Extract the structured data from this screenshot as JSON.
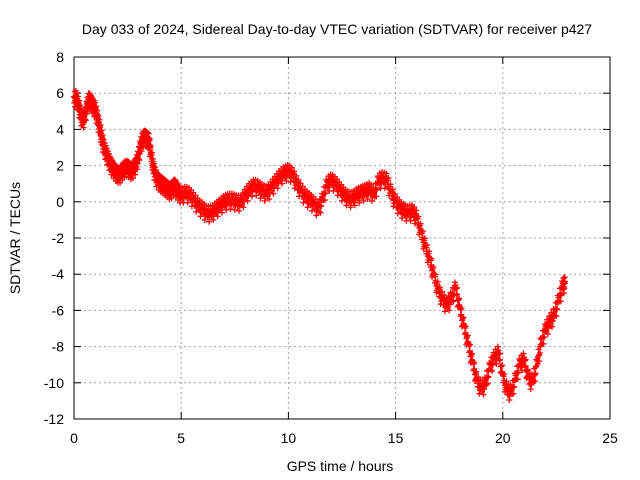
{
  "chart_data": {
    "type": "scatter",
    "title": "Day 033 of 2024, Sidereal Day-to-day VTEC variation (SDTVAR) for receiver p427",
    "xlabel": "GPS time / hours",
    "ylabel": "SDTVAR / TECUs",
    "xlim": [
      0,
      25
    ],
    "ylim": [
      -12,
      8
    ],
    "xticks": [
      0,
      5,
      10,
      15,
      20,
      25
    ],
    "yticks": [
      -12,
      -10,
      -8,
      -6,
      -4,
      -2,
      0,
      2,
      4,
      6,
      8
    ],
    "grid": true,
    "marker": "+",
    "color": "#ff0000",
    "series": [
      {
        "name": "SDTVAR",
        "x": [
          0.0,
          0.1,
          0.2,
          0.3,
          0.4,
          0.5,
          0.6,
          0.7,
          0.8,
          0.9,
          1.0,
          1.1,
          1.2,
          1.3,
          1.4,
          1.5,
          1.6,
          1.7,
          1.8,
          1.9,
          2.0,
          2.1,
          2.2,
          2.3,
          2.4,
          2.5,
          2.6,
          2.7,
          2.8,
          2.9,
          3.0,
          3.1,
          3.2,
          3.3,
          3.4,
          3.5,
          3.6,
          3.7,
          3.8,
          3.9,
          4.0,
          4.1,
          4.2,
          4.3,
          4.4,
          4.5,
          4.6,
          4.7,
          4.8,
          4.9,
          5.0,
          5.2,
          5.4,
          5.6,
          5.8,
          6.0,
          6.2,
          6.4,
          6.6,
          6.8,
          7.0,
          7.2,
          7.4,
          7.6,
          7.8,
          8.0,
          8.2,
          8.4,
          8.6,
          8.8,
          9.0,
          9.2,
          9.4,
          9.6,
          9.8,
          10.0,
          10.2,
          10.4,
          10.6,
          10.8,
          11.0,
          11.2,
          11.4,
          11.6,
          11.8,
          12.0,
          12.2,
          12.4,
          12.6,
          12.8,
          13.0,
          13.2,
          13.4,
          13.6,
          13.8,
          14.0,
          14.2,
          14.4,
          14.6,
          14.8,
          15.0,
          15.2,
          15.4,
          15.6,
          15.8,
          16.0,
          16.2,
          16.4,
          16.6,
          16.8,
          17.0,
          17.2,
          17.4,
          17.6,
          17.8,
          18.0,
          18.2,
          18.4,
          18.6,
          18.8,
          19.0,
          19.2,
          19.4,
          19.6,
          19.8,
          20.0,
          20.2,
          20.4,
          20.6,
          20.8,
          21.0,
          21.2,
          21.4,
          21.6,
          21.8,
          22.0,
          22.2,
          22.4,
          22.6,
          22.8,
          22.9
        ],
        "y": [
          5.8,
          5.9,
          5.5,
          5.0,
          4.6,
          4.8,
          5.4,
          5.8,
          5.6,
          5.4,
          5.2,
          4.7,
          4.2,
          3.6,
          3.1,
          2.8,
          2.5,
          2.2,
          2.0,
          1.8,
          1.7,
          1.6,
          1.7,
          1.9,
          2.0,
          2.0,
          1.9,
          1.8,
          2.0,
          2.2,
          2.6,
          3.2,
          3.6,
          3.7,
          3.6,
          3.5,
          2.7,
          2.0,
          1.6,
          1.3,
          1.2,
          1.1,
          1.0,
          0.9,
          0.8,
          0.7,
          0.9,
          1.0,
          0.8,
          0.6,
          0.5,
          0.6,
          0.5,
          0.2,
          -0.1,
          -0.3,
          -0.5,
          -0.5,
          -0.3,
          -0.1,
          0.1,
          0.2,
          0.2,
          0.1,
          0.1,
          0.5,
          0.8,
          1.0,
          0.9,
          0.7,
          0.6,
          0.9,
          1.2,
          1.5,
          1.7,
          1.8,
          1.6,
          1.1,
          0.7,
          0.4,
          0.2,
          0.0,
          -0.3,
          0.3,
          1.1,
          1.3,
          1.1,
          0.8,
          0.5,
          0.3,
          0.3,
          0.5,
          0.6,
          0.7,
          0.8,
          0.5,
          1.3,
          1.4,
          1.3,
          0.6,
          0.1,
          -0.2,
          -0.4,
          -0.5,
          -0.4,
          -0.8,
          -1.6,
          -2.4,
          -3.1,
          -4.0,
          -4.8,
          -5.3,
          -5.6,
          -5.2,
          -4.6,
          -5.8,
          -6.8,
          -7.8,
          -8.8,
          -9.8,
          -10.2,
          -9.9,
          -9.0,
          -8.5,
          -8.2,
          -9.5,
          -10.3,
          -10.4,
          -9.6,
          -8.8,
          -8.6,
          -9.7,
          -9.8,
          -8.8,
          -7.6,
          -6.9,
          -6.5,
          -6.1,
          -5.3,
          -4.5,
          -4.4
        ]
      }
    ]
  }
}
